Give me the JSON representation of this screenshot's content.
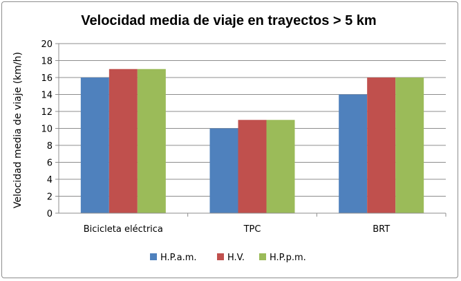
{
  "chart_data": {
    "type": "bar",
    "title": "Velocidad media de viaje en trayectos > 5 km",
    "xlabel": "",
    "ylabel": "Velocidad media de viaje  (km/h)",
    "categories": [
      "Bicicleta eléctrica",
      "TPC",
      "BRT"
    ],
    "series": [
      {
        "name": "H.P.a.m.",
        "values": [
          16,
          10,
          14
        ],
        "color": "#4f81bd"
      },
      {
        "name": "H.V.",
        "values": [
          17,
          11,
          16
        ],
        "color": "#c0504d"
      },
      {
        "name": "H.P.p.m.",
        "values": [
          17,
          11,
          16
        ],
        "color": "#9bbb59"
      }
    ],
    "ylim": [
      0,
      20
    ],
    "ytick_step": 2,
    "grid": true,
    "legend_position": "bottom"
  }
}
